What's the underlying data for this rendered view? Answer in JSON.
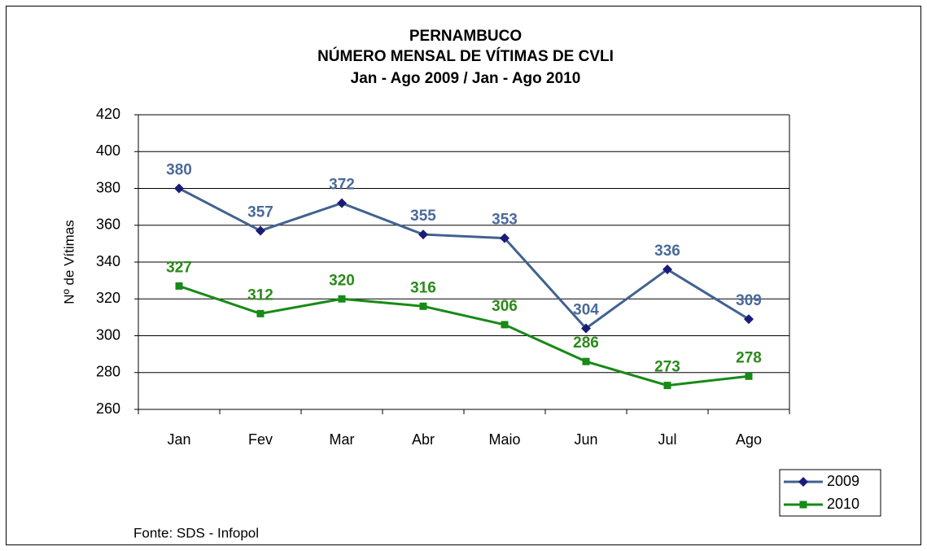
{
  "chart_data": {
    "type": "line",
    "title_lines": [
      "PERNAMBUCO",
      "NÚMERO MENSAL DE VÍTIMAS DE CVLI",
      "Jan - Ago 2009 / Jan - Ago 2010"
    ],
    "y_label": "Nº de Vítimas",
    "source": "Fonte: SDS - Infopol",
    "categories": [
      "Jan",
      "Fev",
      "Mar",
      "Abr",
      "Maio",
      "Jun",
      "Jul",
      "Ago"
    ],
    "series": [
      {
        "name": "2009",
        "color": "#41628f",
        "marker": "diamond",
        "marker_color": "#1c1c78",
        "label_color": "#4a6a9a",
        "values": [
          380,
          357,
          372,
          355,
          353,
          304,
          336,
          309
        ]
      },
      {
        "name": "2010",
        "color": "#178a17",
        "marker": "square",
        "marker_color": "#178a17",
        "label_color": "#2a8a1a",
        "values": [
          327,
          312,
          320,
          316,
          306,
          286,
          273,
          278
        ]
      }
    ],
    "ylim": [
      260,
      420
    ],
    "yticks": [
      260,
      280,
      300,
      320,
      340,
      360,
      380,
      400,
      420
    ],
    "grid": true,
    "legend": "bottom-right"
  }
}
